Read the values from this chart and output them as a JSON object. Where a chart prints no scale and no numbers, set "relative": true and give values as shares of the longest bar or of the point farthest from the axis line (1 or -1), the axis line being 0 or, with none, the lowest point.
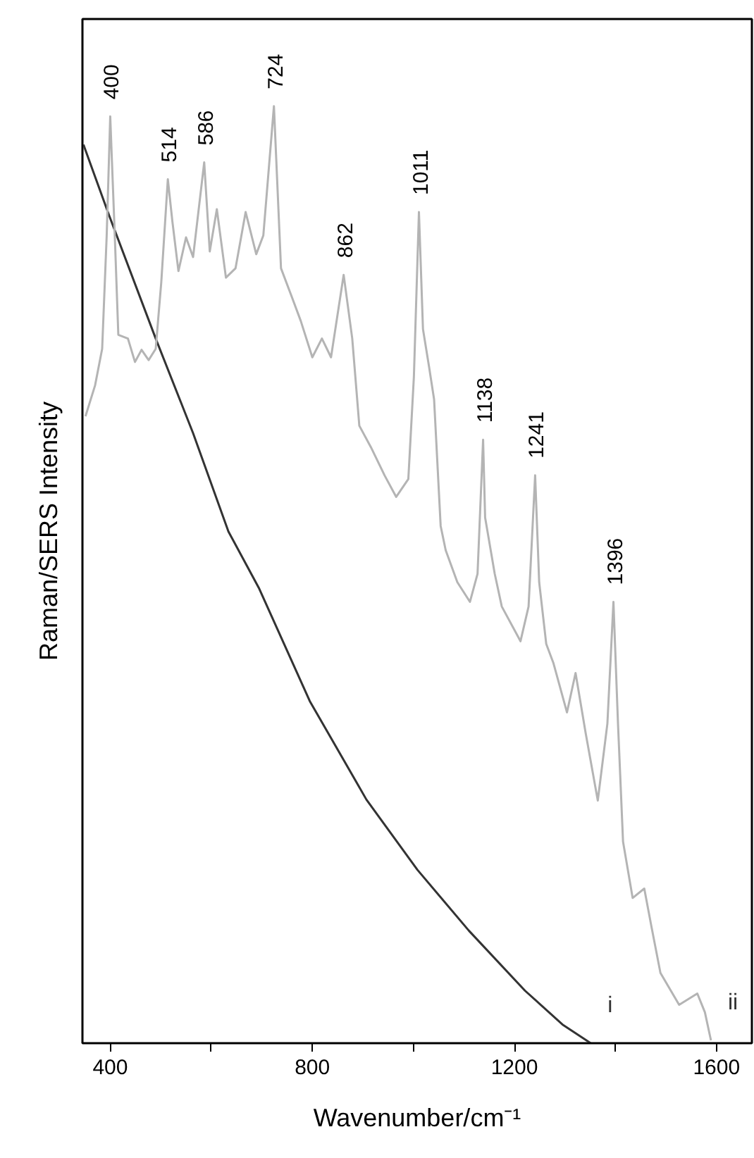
{
  "chart_data": {
    "type": "line",
    "relative": true,
    "xlabel": "Wavenumber/cm⁻¹",
    "ylabel": "Raman/SERS Intensity",
    "xlim": [
      345,
      1670
    ],
    "xticks": [
      400,
      {
        "value": 600,
        "label": null
      },
      800,
      {
        "value": 1000,
        "label": null
      },
      1200,
      {
        "value": 1400,
        "label": null
      },
      1600
    ],
    "grid": false,
    "marker": "none",
    "line_style": "solid",
    "series": [
      {
        "name": "i",
        "color": "#333333",
        "x": [
          347,
          398,
          490,
          564,
          634,
          694,
          795,
          907,
          1008,
          1110,
          1221,
          1295,
          1351
        ],
        "values": [
          0.959,
          0.883,
          0.752,
          0.651,
          0.546,
          0.486,
          0.365,
          0.26,
          0.185,
          0.12,
          0.056,
          0.02,
          0.0
        ]
      },
      {
        "name": "ii",
        "color": "#b4b4b4",
        "x": [
          351,
          370,
          384,
          393,
          400,
          409,
          416,
          435,
          449,
          462,
          476,
          490,
          501,
          514,
          523,
          535,
          550,
          564,
          586,
          597,
          611,
          629,
          648,
          668,
          689,
          703,
          724,
          738,
          759,
          777,
          800,
          819,
          837,
          862,
          879,
          893,
          916,
          943,
          966,
          990,
          1001,
          1011,
          1019,
          1031,
          1041,
          1054,
          1064,
          1087,
          1112,
          1127,
          1138,
          1142,
          1161,
          1175,
          1212,
          1228,
          1241,
          1249,
          1263,
          1277,
          1304,
          1321,
          1341,
          1365,
          1384,
          1396,
          1405,
          1415,
          1434,
          1457,
          1471,
          1489,
          1526,
          1562,
          1577,
          1589
        ],
        "values": [
          0.669,
          0.702,
          0.741,
          0.862,
          0.989,
          0.862,
          0.756,
          0.752,
          0.727,
          0.74,
          0.729,
          0.741,
          0.812,
          0.922,
          0.877,
          0.824,
          0.86,
          0.839,
          0.94,
          0.845,
          0.89,
          0.817,
          0.827,
          0.887,
          0.842,
          0.862,
          1.0,
          0.827,
          0.797,
          0.771,
          0.732,
          0.752,
          0.732,
          0.82,
          0.752,
          0.659,
          0.636,
          0.606,
          0.583,
          0.602,
          0.711,
          0.887,
          0.762,
          0.722,
          0.687,
          0.552,
          0.526,
          0.492,
          0.471,
          0.501,
          0.644,
          0.561,
          0.501,
          0.466,
          0.429,
          0.466,
          0.606,
          0.492,
          0.426,
          0.406,
          0.353,
          0.395,
          0.331,
          0.259,
          0.341,
          0.471,
          0.341,
          0.215,
          0.155,
          0.165,
          0.125,
          0.075,
          0.041,
          0.053,
          0.033,
          0.003
        ]
      }
    ],
    "annotations": [
      {
        "text": "400",
        "x": 400,
        "y": 0.989
      },
      {
        "text": "514",
        "x": 514,
        "y": 0.922
      },
      {
        "text": "586",
        "x": 586,
        "y": 0.94
      },
      {
        "text": "724",
        "x": 724,
        "y": 1.0
      },
      {
        "text": "862",
        "x": 862,
        "y": 0.82
      },
      {
        "text": "1011",
        "x": 1011,
        "y": 0.887
      },
      {
        "text": "1138",
        "x": 1138,
        "y": 0.644
      },
      {
        "text": "1241",
        "x": 1241,
        "y": 0.606
      },
      {
        "text": "1396",
        "x": 1396,
        "y": 0.471
      }
    ]
  }
}
